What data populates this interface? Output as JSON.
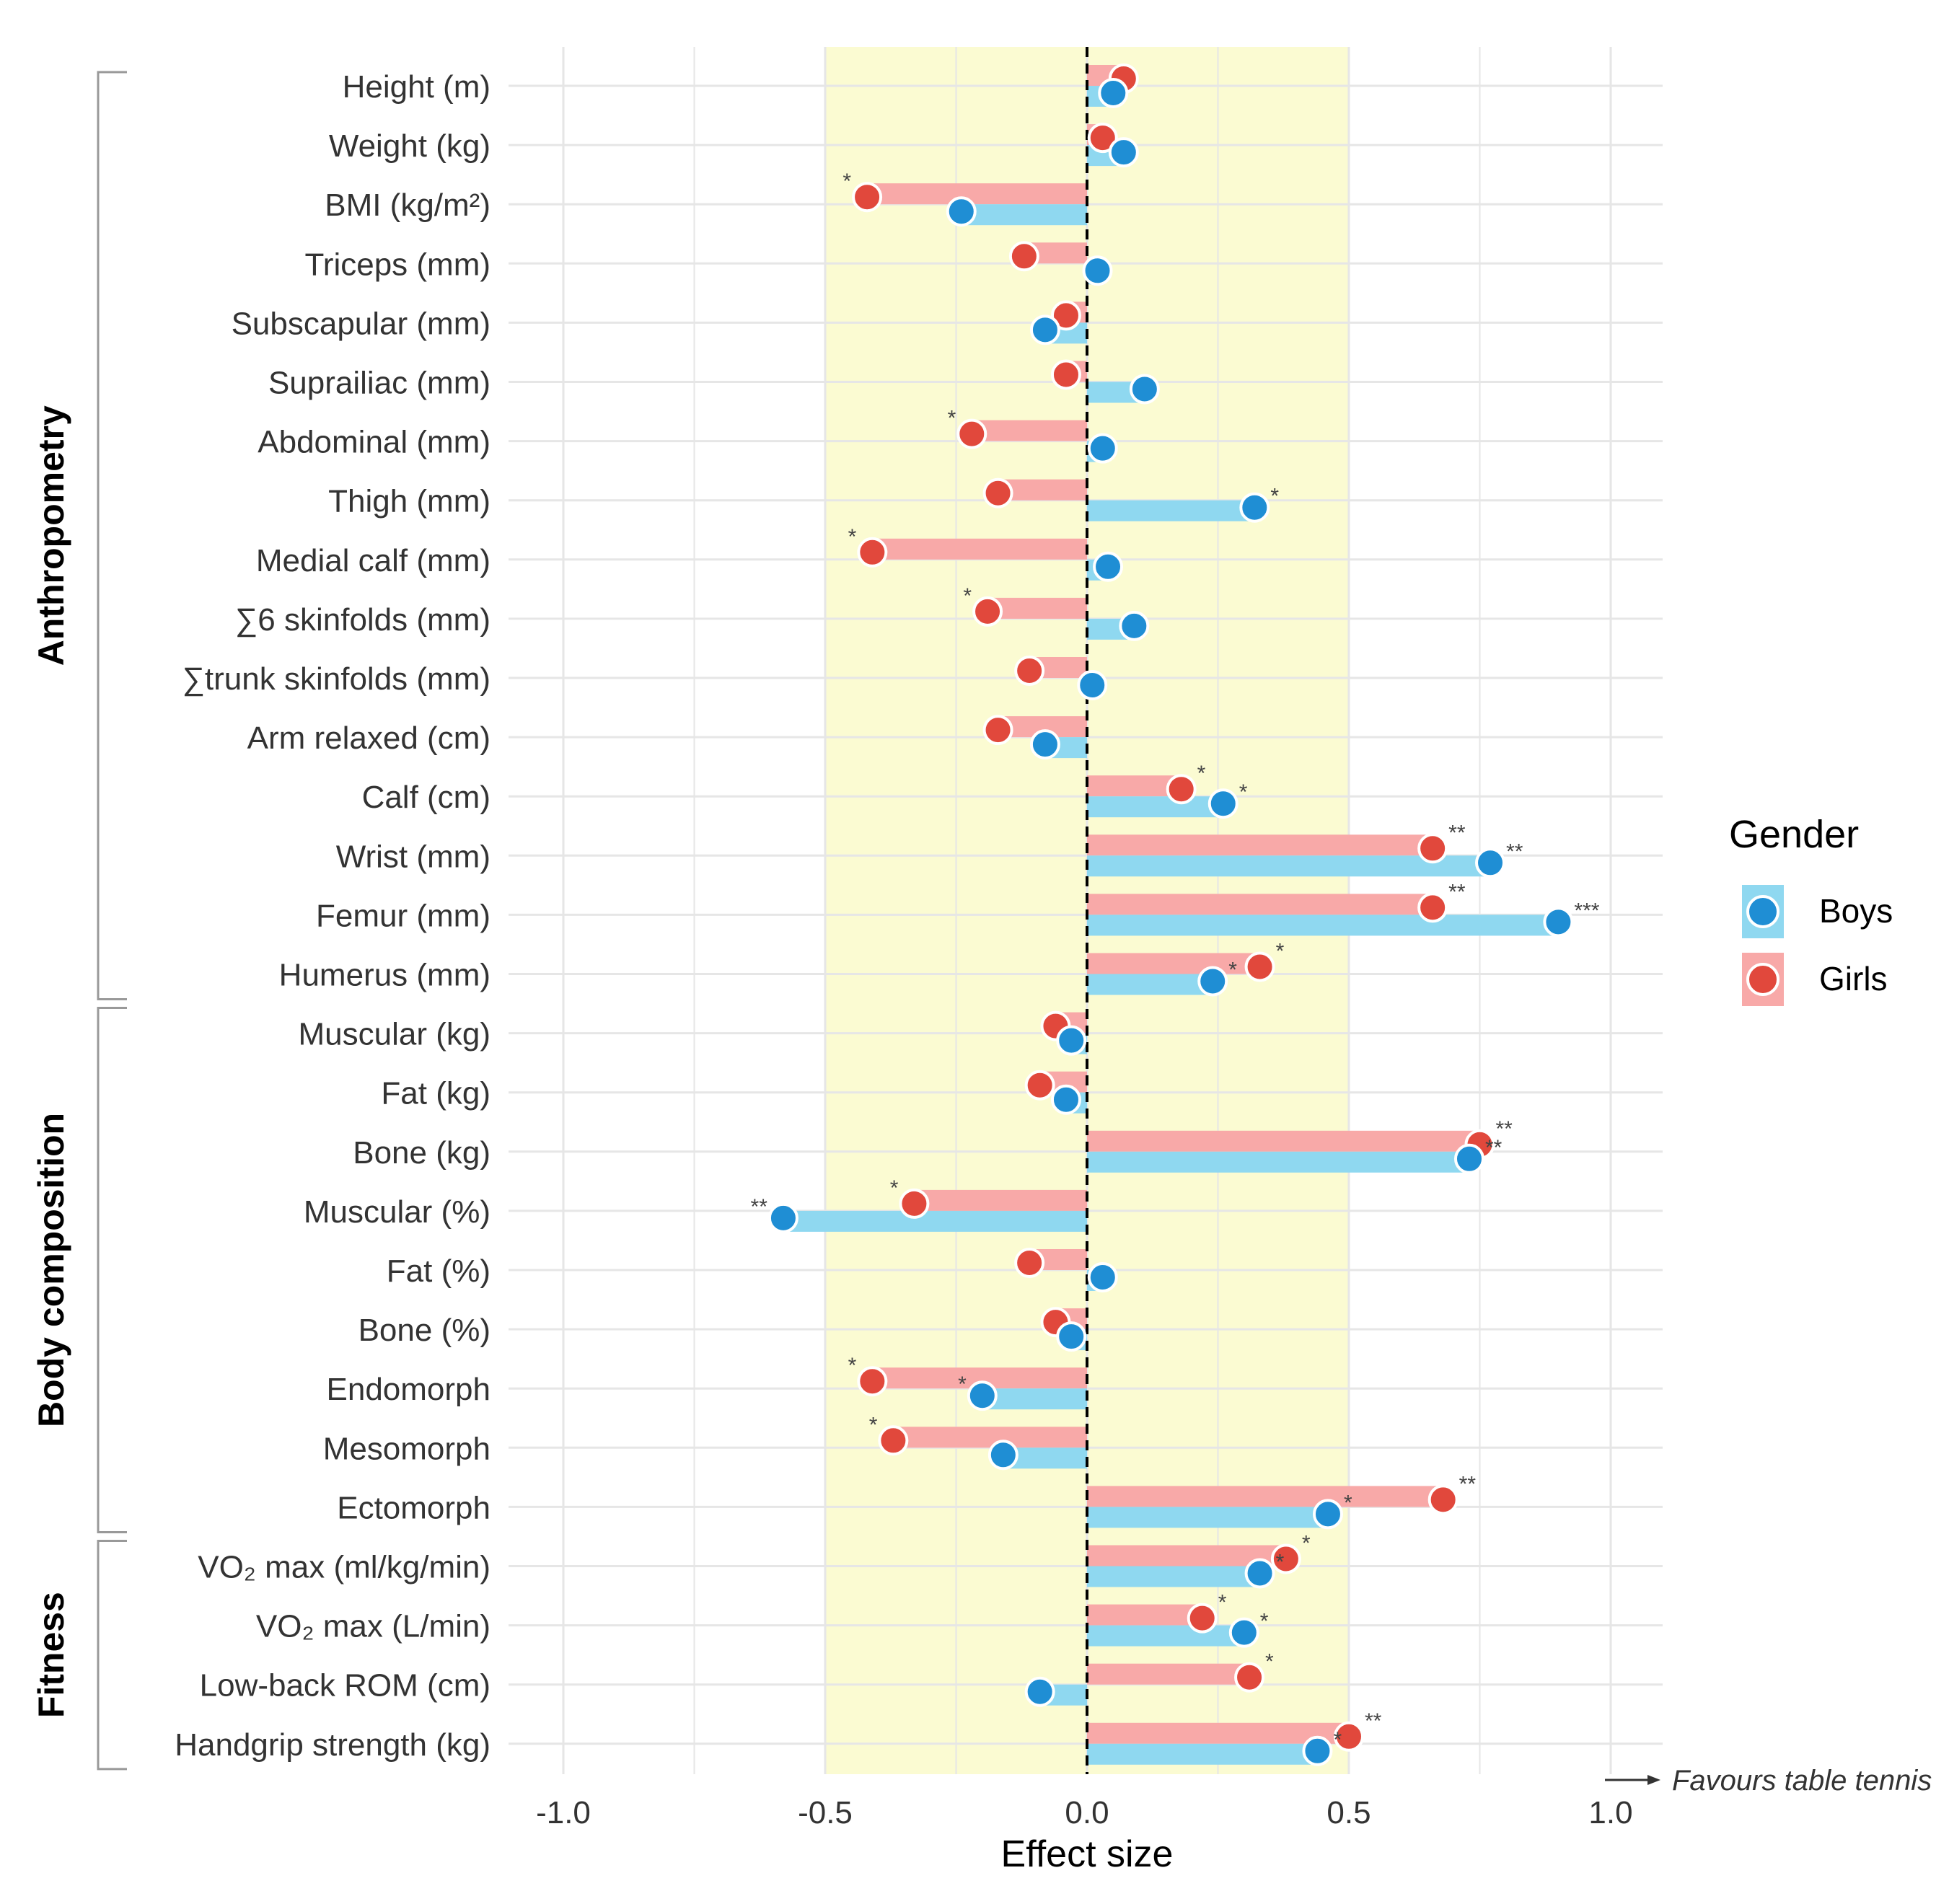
{
  "colors": {
    "boys": "#57c6eb",
    "boys_bar": "#8fd8f0",
    "girls": "#e1483c",
    "girls_bar": "#f8a9a8",
    "band": "#fbfbd2",
    "grid": "#e6e6e6",
    "text": "#333333"
  },
  "chart_data": {
    "type": "bar",
    "orientation": "horizontal",
    "xlabel": "Effect size",
    "xlim": [
      -1.0,
      1.1
    ],
    "xticks": [
      -1.0,
      -0.5,
      0.0,
      0.5,
      1.0
    ],
    "xtick_labels": [
      "-1.0",
      "-0.5",
      "0.0",
      "0.5",
      "1.0"
    ],
    "shaded_band": [
      -0.5,
      0.5
    ],
    "reference_line": 0.0,
    "arrow_label": "Favours table tennis",
    "legend": {
      "title": "Gender",
      "entries": [
        "Boys",
        "Girls"
      ],
      "position": "right"
    },
    "groups": [
      {
        "label": "Anthropometry",
        "from": 0,
        "to": 15
      },
      {
        "label": "Body composition",
        "from": 16,
        "to": 24
      },
      {
        "label": "Fitness",
        "from": 25,
        "to": 28
      }
    ],
    "categories": [
      {
        "label": "Height (m)",
        "boys": 0.05,
        "boys_sig": "",
        "girls": 0.07,
        "girls_sig": ""
      },
      {
        "label": "Weight (kg)",
        "boys": 0.07,
        "boys_sig": "",
        "girls": 0.03,
        "girls_sig": ""
      },
      {
        "label": "BMI (kg/m²)",
        "boys": -0.24,
        "boys_sig": "",
        "girls": -0.42,
        "girls_sig": "*"
      },
      {
        "label": "Triceps (mm)",
        "boys": 0.02,
        "boys_sig": "",
        "girls": -0.12,
        "girls_sig": ""
      },
      {
        "label": "Subscapular (mm)",
        "boys": -0.08,
        "boys_sig": "",
        "girls": -0.04,
        "girls_sig": ""
      },
      {
        "label": "Suprailiac (mm)",
        "boys": 0.11,
        "boys_sig": "",
        "girls": -0.04,
        "girls_sig": ""
      },
      {
        "label": "Abdominal (mm)",
        "boys": 0.03,
        "boys_sig": "",
        "girls": -0.22,
        "girls_sig": "*"
      },
      {
        "label": "Thigh (mm)",
        "boys": 0.32,
        "boys_sig": "*",
        "girls": -0.17,
        "girls_sig": ""
      },
      {
        "label": "Medial calf (mm)",
        "boys": 0.04,
        "boys_sig": "",
        "girls": -0.41,
        "girls_sig": "*"
      },
      {
        "label": "∑6 skinfolds (mm)",
        "boys": 0.09,
        "boys_sig": "",
        "girls": -0.19,
        "girls_sig": "*"
      },
      {
        "label": "∑trunk skinfolds (mm)",
        "boys": 0.01,
        "boys_sig": "",
        "girls": -0.11,
        "girls_sig": ""
      },
      {
        "label": "Arm relaxed (cm)",
        "boys": -0.08,
        "boys_sig": "",
        "girls": -0.17,
        "girls_sig": ""
      },
      {
        "label": "Calf (cm)",
        "boys": 0.26,
        "boys_sig": "*",
        "girls": 0.18,
        "girls_sig": "*"
      },
      {
        "label": "Wrist (mm)",
        "boys": 0.77,
        "boys_sig": "**",
        "girls": 0.66,
        "girls_sig": "**"
      },
      {
        "label": "Femur (mm)",
        "boys": 0.9,
        "boys_sig": "***",
        "girls": 0.66,
        "girls_sig": "**"
      },
      {
        "label": "Humerus (mm)",
        "boys": 0.24,
        "boys_sig": "*",
        "girls": 0.33,
        "girls_sig": "*"
      },
      {
        "label": "Muscular (kg)",
        "boys": -0.03,
        "boys_sig": "",
        "girls": -0.06,
        "girls_sig": ""
      },
      {
        "label": "Fat (kg)",
        "boys": -0.04,
        "boys_sig": "",
        "girls": -0.09,
        "girls_sig": ""
      },
      {
        "label": "Bone (kg)",
        "boys": 0.73,
        "boys_sig": "**",
        "girls": 0.75,
        "girls_sig": "**"
      },
      {
        "label": "Muscular (%)",
        "boys": -0.58,
        "boys_sig": "**",
        "girls": -0.33,
        "girls_sig": "*"
      },
      {
        "label": "Fat (%)",
        "boys": 0.03,
        "boys_sig": "",
        "girls": -0.11,
        "girls_sig": ""
      },
      {
        "label": "Bone (%)",
        "boys": -0.03,
        "boys_sig": "",
        "girls": -0.06,
        "girls_sig": ""
      },
      {
        "label": "Endomorph",
        "boys": -0.2,
        "boys_sig": "*",
        "girls": -0.41,
        "girls_sig": "*"
      },
      {
        "label": "Mesomorph",
        "boys": -0.16,
        "boys_sig": "",
        "girls": -0.37,
        "girls_sig": "*"
      },
      {
        "label": "Ectomorph",
        "boys": 0.46,
        "boys_sig": "*",
        "girls": 0.68,
        "girls_sig": "**"
      },
      {
        "label": "VO₂ max (ml/kg/min)",
        "boys": 0.33,
        "boys_sig": "*",
        "girls": 0.38,
        "girls_sig": "*"
      },
      {
        "label": "VO₂ max (L/min)",
        "boys": 0.3,
        "boys_sig": "*",
        "girls": 0.22,
        "girls_sig": "*"
      },
      {
        "label": "Low-back ROM (cm)",
        "boys": -0.09,
        "boys_sig": "",
        "girls": 0.31,
        "girls_sig": "*"
      },
      {
        "label": "Handgrip strength (kg)",
        "boys": 0.44,
        "boys_sig": "*",
        "girls": 0.5,
        "girls_sig": "**"
      }
    ]
  }
}
